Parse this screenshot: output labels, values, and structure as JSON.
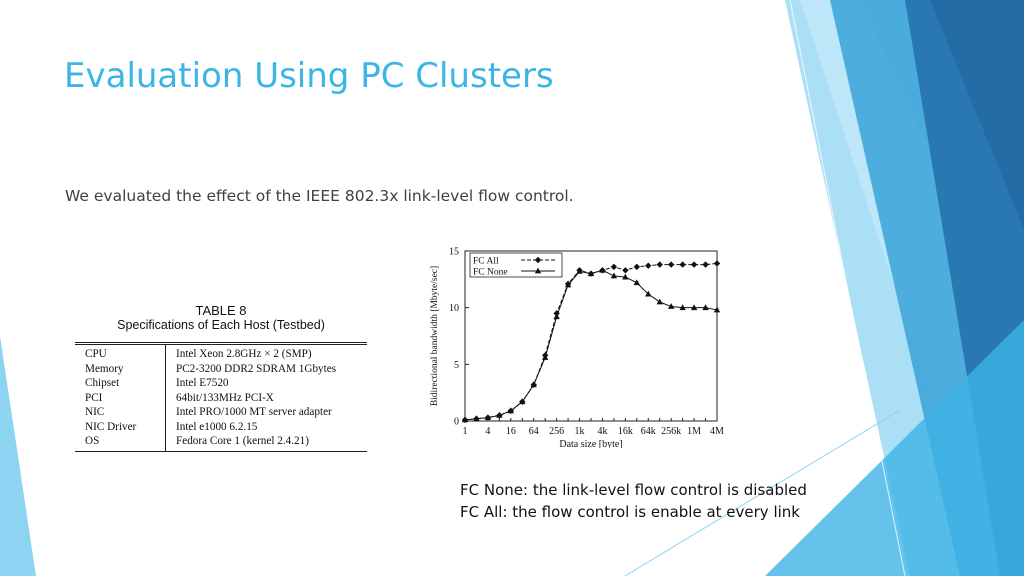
{
  "slide": {
    "title": "Evaluation Using PC Clusters",
    "body": "We evaluated the effect of the IEEE 802.3x link-level flow control.",
    "colors": {
      "title": "#3bb5e6",
      "accent_dark": "#2a78b2",
      "accent_mid": "#3aa3d8",
      "accent_light": "#8dd4f2"
    }
  },
  "table": {
    "caption_line1": "TABLE 8",
    "caption_line2": "Specifications of Each Host (Testbed)",
    "rows": [
      {
        "key": "CPU",
        "value": "Intel Xeon 2.8GHz × 2 (SMP)"
      },
      {
        "key": "Memory",
        "value": "PC2-3200 DDR2 SDRAM 1Gbytes"
      },
      {
        "key": "Chipset",
        "value": "Intel E7520"
      },
      {
        "key": "PCI",
        "value": "64bit/133MHz PCI-X"
      },
      {
        "key": "NIC",
        "value": "Intel PRO/1000 MT server adapter"
      },
      {
        "key": "NIC Driver",
        "value": "Intel e1000 6.2.15"
      },
      {
        "key": "OS",
        "value": "Fedora Core 1 (kernel 2.4.21)"
      }
    ]
  },
  "notes": {
    "line1": "FC None: the link-level flow control is disabled",
    "line2": "FC All: the flow control is enable at every link"
  },
  "chart_data": {
    "type": "line",
    "title": "",
    "xlabel": "Data size [byte]",
    "ylabel": "Bidirectional bandwidth [Mbyte/sec]",
    "ylim": [
      0,
      15
    ],
    "yticks": [
      "0",
      "5",
      "10",
      "15"
    ],
    "categories": [
      "1",
      "2",
      "4",
      "8",
      "16",
      "32",
      "64",
      "128",
      "256",
      "512",
      "1k",
      "2k",
      "4k",
      "8k",
      "16k",
      "32k",
      "64k",
      "128k",
      "256k",
      "512k",
      "1M",
      "2M",
      "4M"
    ],
    "x_tick_labels": [
      "1",
      "4",
      "16",
      "64",
      "256",
      "1k",
      "4k",
      "16k",
      "64k",
      "256k",
      "1M",
      "4M"
    ],
    "grid": false,
    "legend_position": "top-left",
    "series": [
      {
        "name": "FC All",
        "marker": "diamond",
        "values": [
          0.1,
          0.2,
          0.3,
          0.5,
          0.9,
          1.7,
          3.2,
          5.8,
          9.5,
          12.1,
          13.3,
          13.0,
          13.3,
          13.6,
          13.3,
          13.6,
          13.7,
          13.8,
          13.8,
          13.8,
          13.8,
          13.8,
          13.9
        ]
      },
      {
        "name": "FC None",
        "marker": "triangle",
        "values": [
          0.1,
          0.2,
          0.3,
          0.5,
          0.9,
          1.7,
          3.2,
          5.6,
          9.2,
          12.0,
          13.2,
          13.0,
          13.3,
          12.8,
          12.7,
          12.2,
          11.2,
          10.5,
          10.1,
          10.0,
          10.0,
          10.0,
          9.8
        ]
      }
    ]
  }
}
